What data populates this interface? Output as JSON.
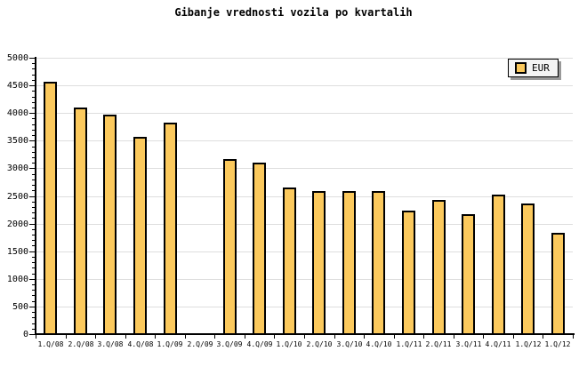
{
  "title": "Gibanje vrednosti vozila po kvartalih",
  "legend": {
    "label": "EUR"
  },
  "colors": {
    "background": "#FFFFFF",
    "bar_fill": "#FBC95D",
    "bar_border": "#000000",
    "grid": "#DEDEDE",
    "axis": "#000000",
    "legend_bg": "#F4F4F4",
    "legend_shadow": "#999999"
  },
  "chart_data": {
    "type": "bar",
    "title": "Gibanje vrednosti vozila po kvartalih",
    "categories": [
      "1.Q/08",
      "2.Q/08",
      "3.Q/08",
      "4.Q/08",
      "1.Q/09",
      "2.Q/09",
      "3.Q/09",
      "4.Q/09",
      "1.Q/10",
      "2.Q/10",
      "3.Q/10",
      "4.Q/10",
      "1.Q/11",
      "2.Q/11",
      "3.Q/11",
      "4.Q/11",
      "1.Q/12",
      "1.Q/12"
    ],
    "series": [
      {
        "name": "EUR",
        "values": [
          4560,
          4100,
          3970,
          3570,
          3820,
          0,
          3170,
          3110,
          2650,
          2590,
          2590,
          2590,
          2230,
          2430,
          2170,
          2530,
          2360,
          1840
        ]
      }
    ],
    "xlabel": "",
    "ylabel": "",
    "ylim": [
      0,
      5000
    ],
    "ytick_step": 500,
    "yminor_step": 100,
    "grid": "horizontal",
    "legend_position": "top-right"
  }
}
